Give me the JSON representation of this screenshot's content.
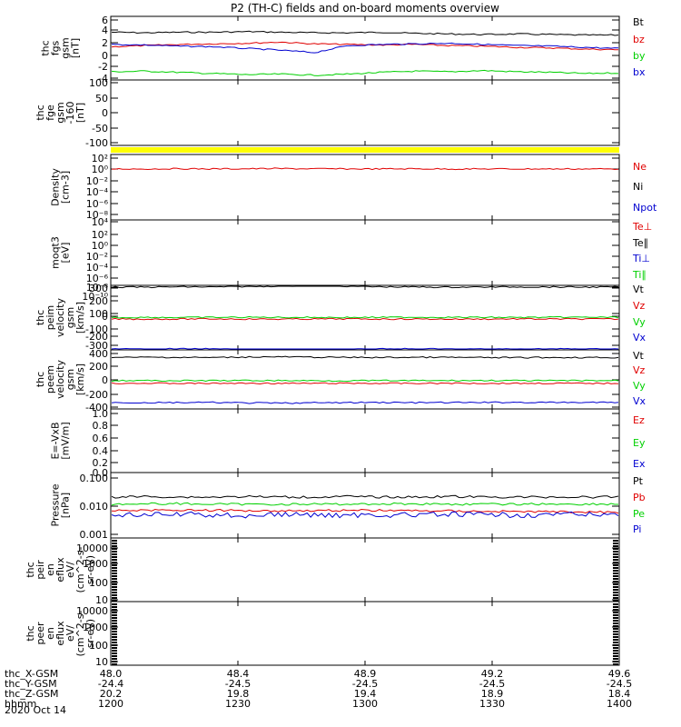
{
  "title": "P2 (TH-C) fields and on-board moments overview",
  "date_label": "2020 Oct 14",
  "colors": {
    "black": "#000000",
    "red": "#e00000",
    "green": "#00d000",
    "blue": "#0000d0",
    "yellow": "#ffff00"
  },
  "chart_data": [
    {
      "type": "line",
      "ylabel": [
        "thc",
        "fgs",
        "gsm",
        "[nT]"
      ],
      "yticks": [
        "6",
        "4",
        "2",
        "0",
        "-2",
        "-4"
      ],
      "ylim": [
        -4,
        6
      ],
      "legend": [
        {
          "name": "Bt",
          "color": "black"
        },
        {
          "name": "bz",
          "color": "red"
        },
        {
          "name": "by",
          "color": "green"
        },
        {
          "name": "bx",
          "color": "blue"
        }
      ],
      "series": [
        {
          "name": "Bt",
          "color": "black",
          "values": [
            3.9,
            3.8,
            3.9,
            3.9,
            4.0,
            3.9,
            3.8,
            3.8,
            3.9,
            3.7,
            3.6,
            3.5,
            3.6,
            3.5,
            3.4,
            3.4
          ]
        },
        {
          "name": "bz",
          "color": "red",
          "values": [
            1.4,
            1.6,
            1.8,
            1.9,
            2.0,
            2.2,
            1.9,
            1.8,
            1.7,
            1.8,
            1.6,
            1.5,
            1.3,
            1.2,
            1.0,
            0.9
          ]
        },
        {
          "name": "by",
          "color": "green",
          "values": [
            -2.9,
            -2.8,
            -3.0,
            -3.2,
            -3.4,
            -3.3,
            -3.5,
            -3.3,
            -3.0,
            -2.8,
            -2.9,
            -2.7,
            -2.9,
            -3.0,
            -3.2,
            -3.1
          ]
        },
        {
          "name": "bx",
          "color": "blue",
          "values": [
            1.8,
            1.7,
            1.5,
            1.4,
            1.1,
            0.8,
            0.4,
            1.6,
            1.8,
            1.9,
            2.0,
            1.8,
            1.6,
            1.5,
            1.3,
            1.1
          ]
        }
      ]
    },
    {
      "type": "line",
      "ylabel": [
        "thc",
        "fge",
        "gsm",
        "-160",
        "[nT]"
      ],
      "yticks": [
        "100",
        "50",
        "0",
        "-50",
        "-100"
      ],
      "ylim": [
        -130,
        100
      ],
      "legend": [],
      "series": []
    },
    {
      "type": "bar",
      "ylabel": [],
      "yticks": [],
      "legend": [],
      "band": "yellow"
    },
    {
      "type": "line",
      "scale": "log",
      "ylabel": [
        "Density",
        "[cm-3]"
      ],
      "yticks": [
        "10²",
        "10⁰",
        "10⁻²",
        "10⁻⁴",
        "10⁻⁶",
        "10⁻⁸"
      ],
      "legend": [
        {
          "name": "Ne",
          "color": "red"
        },
        {
          "name": "Ni",
          "color": "black"
        },
        {
          "name": "Npot",
          "color": "blue"
        }
      ],
      "series": [
        {
          "name": "Ne",
          "color": "red",
          "values": [
            1.2,
            1.2,
            1.3,
            1.2,
            1.3,
            1.4,
            1.3,
            1.2,
            1.2,
            1.3,
            1.2,
            1.2,
            1.2,
            1.2,
            1.2,
            1.2
          ]
        }
      ]
    },
    {
      "type": "line",
      "scale": "log",
      "ylabel": [
        "moqt3",
        "[eV]"
      ],
      "yticks": [
        "10⁴",
        "10²",
        "10⁰",
        "10⁻²",
        "10⁻⁴",
        "10⁻⁶",
        "10⁻⁸",
        "10⁻¹⁰"
      ],
      "legend": [
        {
          "name": "Te⊥",
          "color": "red"
        },
        {
          "name": "Te∥",
          "color": "black"
        },
        {
          "name": "Ti⊥",
          "color": "blue"
        },
        {
          "name": "Ti∥",
          "color": "green"
        }
      ],
      "series": []
    },
    {
      "type": "line",
      "ylabel": [
        "thc",
        "peim",
        "velocity",
        "gsm",
        "[km/s]"
      ],
      "yticks": [
        "300",
        "200",
        "100",
        "0",
        "-100",
        "-200",
        "-300"
      ],
      "ylim": [
        -300,
        300
      ],
      "legend": [
        {
          "name": "Vt",
          "color": "black"
        },
        {
          "name": "Vz",
          "color": "red"
        },
        {
          "name": "Vy",
          "color": "green"
        },
        {
          "name": "Vx",
          "color": "blue"
        }
      ],
      "series": [
        {
          "name": "Vt",
          "color": "black",
          "values": [
            320,
            318,
            322,
            320,
            325,
            330,
            335,
            328,
            322,
            320,
            318,
            320,
            321,
            320,
            319,
            320
          ]
        },
        {
          "name": "Vz",
          "color": "red",
          "values": [
            -5,
            -6,
            -5,
            -4,
            -5,
            -6,
            -5,
            -4,
            -5,
            -5,
            -6,
            -5,
            -4,
            -5,
            -5,
            -5
          ]
        },
        {
          "name": "Vy",
          "color": "green",
          "values": [
            10,
            12,
            11,
            12,
            13,
            12,
            12,
            11,
            12,
            13,
            12,
            12,
            11,
            12,
            13,
            12
          ]
        },
        {
          "name": "Vx",
          "color": "blue",
          "values": [
            -310,
            -312,
            -308,
            -310,
            -318,
            -325,
            -322,
            -315,
            -310,
            -309,
            -310,
            -311,
            -310,
            -309,
            -310,
            -310
          ]
        }
      ]
    },
    {
      "type": "line",
      "ylabel": [
        "thc",
        "peem",
        "velocity",
        "gsm",
        "[km/s]"
      ],
      "yticks": [
        "400",
        "200",
        "0",
        "-200",
        "-400"
      ],
      "ylim": [
        -400,
        400
      ],
      "legend": [
        {
          "name": "Vt",
          "color": "black"
        },
        {
          "name": "Vz",
          "color": "red"
        },
        {
          "name": "Vy",
          "color": "green"
        },
        {
          "name": "Vx",
          "color": "blue"
        }
      ],
      "series": [
        {
          "name": "Vt",
          "color": "black",
          "values": [
            340,
            345,
            342,
            340,
            348,
            350,
            345,
            342,
            340,
            344,
            342,
            340,
            338,
            341,
            340,
            339
          ]
        },
        {
          "name": "Vz",
          "color": "red",
          "values": [
            -45,
            -44,
            -46,
            -45,
            -44,
            -46,
            -45,
            -44,
            -45,
            -46,
            -44,
            -45,
            -45,
            -44,
            -46,
            -45
          ]
        },
        {
          "name": "Vy",
          "color": "green",
          "values": [
            -5,
            -4,
            -6,
            -5,
            -3,
            -4,
            -5,
            -6,
            -4,
            -5,
            -5,
            -3,
            -5,
            -6,
            -4,
            -5
          ]
        },
        {
          "name": "Vx",
          "color": "blue",
          "values": [
            -330,
            -335,
            -332,
            -330,
            -338,
            -340,
            -335,
            -333,
            -330,
            -334,
            -332,
            -330,
            -328,
            -331,
            -330,
            -329
          ]
        }
      ]
    },
    {
      "type": "line",
      "ylabel": [
        "E=-VxB",
        "[mV/m]"
      ],
      "yticks": [
        "1.0",
        "0.8",
        "0.6",
        "0.4",
        "0.2",
        "0.0"
      ],
      "ylim": [
        0,
        1
      ],
      "legend": [
        {
          "name": "Ez",
          "color": "red"
        },
        {
          "name": "Ey",
          "color": "green"
        },
        {
          "name": "Ex",
          "color": "blue"
        }
      ],
      "series": []
    },
    {
      "type": "line",
      "scale": "log",
      "ylabel": [
        "Pressure",
        "[nPa]"
      ],
      "yticks": [
        "0.100",
        "0.010",
        "0.001"
      ],
      "ylim": [
        0.001,
        0.1
      ],
      "legend": [
        {
          "name": "Pt",
          "color": "black"
        },
        {
          "name": "Pb",
          "color": "red"
        },
        {
          "name": "Pe",
          "color": "green"
        },
        {
          "name": "Pi",
          "color": "blue"
        }
      ],
      "series": [
        {
          "name": "Pt",
          "color": "black",
          "values": [
            0.02,
            0.021,
            0.02,
            0.02,
            0.021,
            0.02,
            0.02,
            0.021,
            0.02,
            0.02,
            0.021,
            0.02,
            0.02,
            0.02,
            0.02,
            0.02
          ]
        },
        {
          "name": "Pb",
          "color": "red",
          "values": [
            0.0065,
            0.0066,
            0.0067,
            0.0065,
            0.0064,
            0.0063,
            0.0064,
            0.0065,
            0.0065,
            0.0063,
            0.0062,
            0.006,
            0.0059,
            0.0058,
            0.0057,
            0.0056
          ]
        },
        {
          "name": "Pe",
          "color": "green",
          "values": [
            0.011,
            0.0112,
            0.0115,
            0.011,
            0.0108,
            0.011,
            0.0109,
            0.011,
            0.0112,
            0.0113,
            0.011,
            0.0109,
            0.011,
            0.0111,
            0.011,
            0.011
          ]
        },
        {
          "name": "Pi",
          "color": "blue",
          "values": [
            0.0045,
            0.0043,
            0.0047,
            0.0044,
            0.0042,
            0.0046,
            0.0044,
            0.0043,
            0.0045,
            0.0044,
            0.0046,
            0.0045,
            0.0044,
            0.0045,
            0.0046,
            0.0045
          ]
        }
      ]
    },
    {
      "type": "heatmap",
      "scale": "log",
      "ylabel": [
        "thc",
        "peir",
        "en",
        "eflux",
        "eV/",
        "(cm^2-s-",
        "sr-eV)"
      ],
      "yticks": [
        "10000",
        "1000",
        "100",
        "10"
      ],
      "legend": []
    },
    {
      "type": "heatmap",
      "scale": "log",
      "ylabel": [
        "thc",
        "peer",
        "en",
        "eflux",
        "eV/",
        "(cm^2-s-",
        "sr-eV)"
      ],
      "yticks": [
        "10000",
        "1000",
        "100",
        "10"
      ],
      "legend": []
    }
  ],
  "bottom_axis": {
    "row_labels": [
      "thc_X-GSM",
      "thc_Y-GSM",
      "thc_Z-GSM",
      "hhmm"
    ],
    "columns": [
      [
        "48.0",
        "-24.4",
        "20.2",
        "1200"
      ],
      [
        "48.4",
        "-24.5",
        "19.8",
        "1230"
      ],
      [
        "48.9",
        "-24.5",
        "19.4",
        "1300"
      ],
      [
        "49.2",
        "-24.5",
        "18.9",
        "1330"
      ],
      [
        "49.6",
        "-24.5",
        "18.4",
        "1400"
      ]
    ]
  }
}
